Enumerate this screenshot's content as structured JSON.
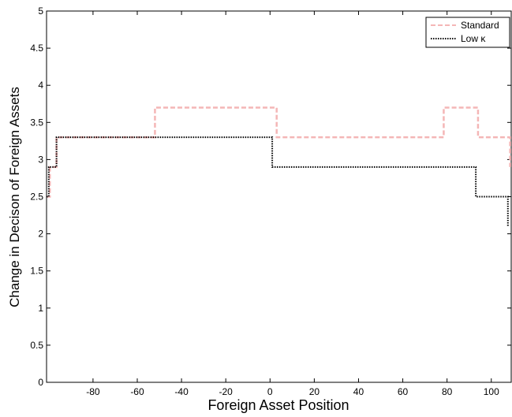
{
  "chart_data": {
    "type": "line",
    "xlabel": "Foreign Asset Position",
    "ylabel": "Change in Decison of Foreign Assets",
    "xlim": [
      -101,
      109
    ],
    "ylim": [
      0,
      5
    ],
    "xticks": [
      -80,
      -60,
      -40,
      -20,
      0,
      20,
      40,
      60,
      80,
      100
    ],
    "yticks": [
      0,
      0.5,
      1,
      1.5,
      2,
      2.5,
      3,
      3.5,
      4,
      4.5,
      5
    ],
    "legend_position": "upper right",
    "series": [
      {
        "name": "Standard",
        "color": "#f4b6b6",
        "style": "dashed",
        "x": [
          -101,
          -99.5,
          -99.5,
          -96.5,
          -96.5,
          -52,
          -52,
          3,
          3,
          78.5,
          78.5,
          94,
          94,
          108.5,
          108.5
        ],
        "values": [
          2.5,
          2.5,
          2.9,
          2.9,
          3.3,
          3.3,
          3.7,
          3.7,
          3.3,
          3.3,
          3.7,
          3.7,
          3.3,
          3.3,
          2.9
        ]
      },
      {
        "name": "Low κ",
        "color": "#000000",
        "style": "dotted",
        "x": [
          -101,
          -100,
          -100,
          -96.5,
          -96.5,
          1,
          1,
          93,
          93,
          107.5,
          107.5
        ],
        "values": [
          2.5,
          2.5,
          2.9,
          2.9,
          3.3,
          3.3,
          2.9,
          2.9,
          2.5,
          2.5,
          2.1
        ]
      }
    ]
  }
}
